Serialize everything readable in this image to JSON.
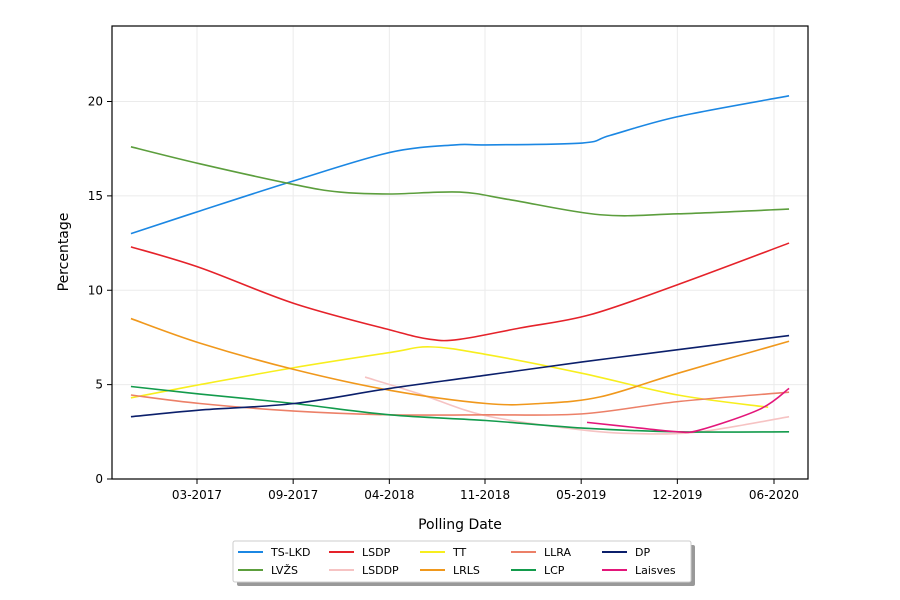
{
  "chart_data": {
    "type": "line",
    "xlabel": "Polling Date",
    "ylabel": "Percentage",
    "xlim": [
      "2016-09-07",
      "2020-08-10"
    ],
    "ylim": [
      0,
      24
    ],
    "grid": true,
    "legend_position": "bottom-center",
    "xticks": [
      {
        "date": "2017-03-01",
        "label": "03-2017"
      },
      {
        "date": "2017-09-15",
        "label": "09-2017"
      },
      {
        "date": "2018-04-01",
        "label": "04-2018"
      },
      {
        "date": "2018-10-15",
        "label": "11-2018"
      },
      {
        "date": "2019-05-01",
        "label": "05-2019"
      },
      {
        "date": "2019-11-15",
        "label": "12-2019"
      },
      {
        "date": "2020-06-01",
        "label": "06-2020"
      }
    ],
    "yticks": [
      {
        "value": 0,
        "label": "0"
      },
      {
        "value": 5,
        "label": "5"
      },
      {
        "value": 10,
        "label": "10"
      },
      {
        "value": 15,
        "label": "15"
      },
      {
        "value": 20,
        "label": "20"
      }
    ],
    "series": [
      {
        "name": "TS-LKD",
        "color": "#1b87e3",
        "x": [
          "2016-10-16",
          "2017-03-07",
          "2017-09-17",
          "2018-04-02",
          "2018-08-14",
          "2018-10-17",
          "2019-05-03",
          "2019-06-29",
          "2019-11-16",
          "2020-07-02"
        ],
        "y": [
          13.0,
          14.2,
          15.8,
          17.3,
          17.7,
          17.7,
          17.8,
          18.2,
          19.2,
          20.3
        ]
      },
      {
        "name": "LVŽS",
        "color": "#5c9e3d",
        "x": [
          "2016-10-16",
          "2017-03-07",
          "2017-09-17",
          "2017-12-20",
          "2018-04-02",
          "2018-08-24",
          "2018-12-05",
          "2019-06-09",
          "2019-11-16",
          "2020-07-02"
        ],
        "y": [
          17.6,
          16.7,
          15.6,
          15.2,
          15.1,
          15.2,
          14.8,
          14.0,
          14.05,
          14.3
        ]
      },
      {
        "name": "LSDP",
        "color": "#e5222a",
        "x": [
          "2016-10-16",
          "2017-03-07",
          "2017-09-17",
          "2018-04-02",
          "2018-06-24",
          "2018-08-24",
          "2018-12-26",
          "2019-05-19",
          "2019-11-16",
          "2020-07-02"
        ],
        "y": [
          12.3,
          11.2,
          9.3,
          7.9,
          7.4,
          7.4,
          8.0,
          8.7,
          10.3,
          12.5
        ]
      },
      {
        "name": "LSDDP",
        "color": "#f6c3c3",
        "x": [
          "2018-02-10",
          "2018-06-03",
          "2018-10-17",
          "2019-05-03",
          "2019-08-30",
          "2020-01-01",
          "2020-07-02"
        ],
        "y": [
          5.4,
          4.5,
          3.35,
          2.6,
          2.4,
          2.5,
          3.3
        ]
      },
      {
        "name": "TT",
        "color": "#f7ee1e",
        "x": [
          "2016-10-16",
          "2017-03-07",
          "2017-09-17",
          "2018-04-02",
          "2018-06-24",
          "2018-10-17",
          "2019-05-03",
          "2019-11-16",
          "2020-05-20"
        ],
        "y": [
          4.3,
          5.0,
          5.9,
          6.7,
          7.0,
          6.6,
          5.6,
          4.45,
          3.8
        ]
      },
      {
        "name": "LRLS",
        "color": "#f0981c",
        "x": [
          "2016-10-16",
          "2017-03-07",
          "2017-09-17",
          "2018-04-02",
          "2018-10-17",
          "2019-02-05",
          "2019-06-09",
          "2019-11-16",
          "2020-07-02"
        ],
        "y": [
          8.5,
          7.2,
          5.8,
          4.7,
          4.0,
          4.0,
          4.35,
          5.6,
          7.3
        ]
      },
      {
        "name": "LLRA",
        "color": "#ec8068",
        "x": [
          "2016-10-16",
          "2017-03-07",
          "2017-09-17",
          "2018-04-02",
          "2018-10-17",
          "2019-05-03",
          "2019-11-16",
          "2020-07-02"
        ],
        "y": [
          4.45,
          4.0,
          3.6,
          3.4,
          3.4,
          3.45,
          4.1,
          4.6
        ]
      },
      {
        "name": "LCP",
        "color": "#139b4c",
        "x": [
          "2016-10-16",
          "2017-03-07",
          "2017-09-17",
          "2018-04-02",
          "2018-10-17",
          "2019-05-03",
          "2019-11-16",
          "2020-07-02"
        ],
        "y": [
          4.9,
          4.5,
          4.0,
          3.4,
          3.1,
          2.7,
          2.5,
          2.5
        ]
      },
      {
        "name": "DP",
        "color": "#0b1f6b",
        "x": [
          "2016-10-16",
          "2017-03-07",
          "2017-09-17",
          "2018-04-02",
          "2018-10-17",
          "2019-05-03",
          "2019-11-16",
          "2020-07-02"
        ],
        "y": [
          3.3,
          3.65,
          4.0,
          4.8,
          5.5,
          6.2,
          6.85,
          7.6
        ]
      },
      {
        "name": "Laisves",
        "color": "#e3167a",
        "x": [
          "2019-05-13",
          "2019-08-30",
          "2019-11-16",
          "2020-01-01",
          "2020-05-03",
          "2020-07-02"
        ],
        "y": [
          3.0,
          2.7,
          2.5,
          2.6,
          3.7,
          4.8
        ]
      }
    ]
  }
}
